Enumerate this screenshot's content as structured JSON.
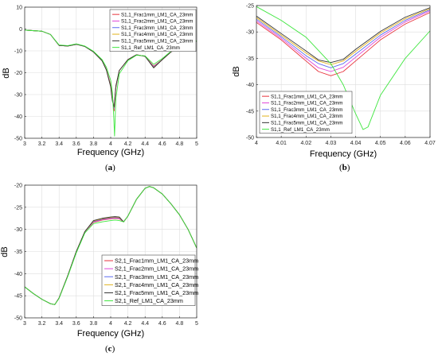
{
  "colors": {
    "frac1": "#e8323c",
    "frac2": "#e045d8",
    "frac3": "#5b6cf0",
    "frac4": "#e2b21b",
    "frac5": "#333333",
    "ref": "#3ee63e"
  },
  "chart_data": [
    {
      "type": "line",
      "panel_label": "a",
      "xlabel": "Frequency (GHz)",
      "ylabel": "dB",
      "xlim": [
        3,
        5
      ],
      "ylim": [
        -50,
        10
      ],
      "xticks": [
        "3",
        "3.2",
        "3.4",
        "3.6",
        "3.8",
        "4",
        "4.2",
        "4.4",
        "4.6",
        "4.8",
        "5"
      ],
      "yticks": [
        "10",
        "0",
        "-10",
        "-20",
        "-30",
        "-40",
        "-50"
      ],
      "grid": true,
      "legend": "top-right",
      "series": [
        {
          "name": "S1,1_Frac1mm_LM1_CA_23mm",
          "color_key": "frac1",
          "x": [
            3.0,
            3.2,
            3.3,
            3.4,
            3.5,
            3.6,
            3.7,
            3.8,
            3.9,
            3.95,
            4.0,
            4.02,
            4.04,
            4.06,
            4.1,
            4.2,
            4.3,
            4.4,
            4.5,
            4.6,
            4.7,
            4.8,
            4.9,
            5.0
          ],
          "y": [
            -0.5,
            -1.0,
            -2.5,
            -7.5,
            -7.8,
            -7.0,
            -8.0,
            -10.5,
            -14.5,
            -18.5,
            -25.5,
            -31.0,
            -37.5,
            -27.0,
            -19.0,
            -14.0,
            -11.8,
            -12.5,
            -17.0,
            -14.0,
            -10.5,
            -8.5,
            -7.0,
            -5.5
          ]
        },
        {
          "name": "S1,1_Frac2mm_LM1_CA_23mm",
          "color_key": "frac2",
          "x": [
            3.0,
            3.2,
            3.3,
            3.4,
            3.5,
            3.6,
            3.7,
            3.8,
            3.9,
            3.95,
            4.0,
            4.02,
            4.04,
            4.06,
            4.1,
            4.2,
            4.3,
            4.4,
            4.5,
            4.6,
            4.7,
            4.8,
            4.9,
            5.0
          ],
          "y": [
            -0.5,
            -1.0,
            -2.5,
            -7.5,
            -7.8,
            -7.0,
            -8.0,
            -10.5,
            -14.5,
            -18.5,
            -25.8,
            -31.5,
            -36.5,
            -26.8,
            -19.0,
            -14.0,
            -11.8,
            -12.5,
            -17.2,
            -14.0,
            -10.5,
            -8.5,
            -7.0,
            -5.5
          ]
        },
        {
          "name": "S1,1_Frac3mm_LM1_CA_23mm",
          "color_key": "frac3",
          "x": [
            3.0,
            3.2,
            3.3,
            3.4,
            3.5,
            3.6,
            3.7,
            3.8,
            3.9,
            3.95,
            4.0,
            4.02,
            4.04,
            4.06,
            4.1,
            4.2,
            4.3,
            4.4,
            4.5,
            4.6,
            4.7,
            4.8,
            4.9,
            5.0
          ],
          "y": [
            -0.5,
            -1.0,
            -2.5,
            -7.5,
            -7.8,
            -7.0,
            -8.0,
            -10.5,
            -14.5,
            -18.6,
            -26.0,
            -32.0,
            -36.0,
            -26.5,
            -19.0,
            -14.0,
            -11.8,
            -12.5,
            -17.4,
            -14.0,
            -10.5,
            -8.5,
            -7.0,
            -5.5
          ]
        },
        {
          "name": "S1,1_Frac4mm_LM1_CA_23mm",
          "color_key": "frac4",
          "x": [
            3.0,
            3.2,
            3.3,
            3.4,
            3.5,
            3.6,
            3.7,
            3.8,
            3.9,
            3.95,
            4.0,
            4.02,
            4.04,
            4.06,
            4.1,
            4.2,
            4.3,
            4.4,
            4.5,
            4.6,
            4.7,
            4.8,
            4.9,
            5.0
          ],
          "y": [
            -0.5,
            -1.0,
            -2.5,
            -7.5,
            -7.8,
            -7.0,
            -8.0,
            -10.5,
            -14.5,
            -18.7,
            -26.2,
            -32.5,
            -35.8,
            -26.2,
            -19.0,
            -14.0,
            -11.8,
            -12.5,
            -17.6,
            -14.0,
            -10.5,
            -8.5,
            -7.0,
            -5.5
          ]
        },
        {
          "name": "S1,1_Frac5mm_LM1_CA_23mm",
          "color_key": "frac5",
          "x": [
            3.0,
            3.2,
            3.3,
            3.4,
            3.5,
            3.6,
            3.7,
            3.8,
            3.9,
            3.95,
            4.0,
            4.02,
            4.04,
            4.06,
            4.1,
            4.2,
            4.3,
            4.4,
            4.5,
            4.6,
            4.7,
            4.8,
            4.9,
            5.0
          ],
          "y": [
            -0.5,
            -1.0,
            -2.5,
            -7.5,
            -7.8,
            -7.0,
            -8.0,
            -10.5,
            -14.5,
            -18.8,
            -26.5,
            -33.0,
            -35.7,
            -26.0,
            -19.0,
            -14.0,
            -11.8,
            -12.5,
            -17.8,
            -14.0,
            -10.5,
            -8.5,
            -7.0,
            -5.5
          ]
        },
        {
          "name": "S1,1_Ref_LM1_CA_23mm",
          "color_key": "ref",
          "x": [
            3.0,
            3.2,
            3.3,
            3.4,
            3.5,
            3.6,
            3.7,
            3.8,
            3.9,
            3.95,
            4.0,
            4.02,
            4.035,
            4.045,
            4.06,
            4.1,
            4.2,
            4.3,
            4.4,
            4.5,
            4.6,
            4.7,
            4.8,
            4.9,
            5.0
          ],
          "y": [
            -0.5,
            -1.0,
            -2.5,
            -7.3,
            -7.6,
            -6.8,
            -7.8,
            -10.2,
            -14.0,
            -17.5,
            -23.5,
            -29.0,
            -40.0,
            -49.0,
            -32.0,
            -20.5,
            -14.5,
            -12.0,
            -12.3,
            -16.2,
            -13.5,
            -10.2,
            -8.2,
            -6.8,
            -5.4
          ]
        }
      ]
    },
    {
      "type": "line",
      "panel_label": "b",
      "xlabel": "Frequency (GHz)",
      "ylabel": "dB",
      "xlim": [
        4,
        4.07
      ],
      "ylim": [
        -50,
        -25
      ],
      "xticks": [
        "4",
        "4.01",
        "4.02",
        "4.03",
        "4.04",
        "4.05",
        "4.06",
        "4.07"
      ],
      "yticks": [
        "-25",
        "-30",
        "-35",
        "-40",
        "-45",
        "-50"
      ],
      "grid": true,
      "legend": "bottom-left",
      "series": [
        {
          "name": "S1,1_Frac1mm_LM1_CA_23mm",
          "color_key": "frac1",
          "x": [
            4.0,
            4.01,
            4.02,
            4.025,
            4.03,
            4.035,
            4.04,
            4.05,
            4.06,
            4.07
          ],
          "y": [
            -28.2,
            -31.5,
            -35.5,
            -37.5,
            -38.3,
            -37.5,
            -35.5,
            -31.5,
            -28.5,
            -26.3
          ]
        },
        {
          "name": "S1,1_Frac2mm_LM1_CA_23mm",
          "color_key": "frac2",
          "x": [
            4.0,
            4.01,
            4.02,
            4.025,
            4.03,
            4.035,
            4.04,
            4.05,
            4.06,
            4.07
          ],
          "y": [
            -27.9,
            -31.2,
            -35.0,
            -36.8,
            -37.5,
            -36.7,
            -34.8,
            -31.0,
            -28.1,
            -26.0
          ]
        },
        {
          "name": "S1,1_Frac3mm_LM1_CA_23mm",
          "color_key": "frac3",
          "x": [
            4.0,
            4.01,
            4.02,
            4.025,
            4.03,
            4.035,
            4.04,
            4.05,
            4.06,
            4.07
          ],
          "y": [
            -27.6,
            -30.9,
            -34.5,
            -36.0,
            -36.8,
            -36.0,
            -34.2,
            -30.6,
            -27.8,
            -25.8
          ]
        },
        {
          "name": "S1,1_Frac4mm_LM1_CA_23mm",
          "color_key": "frac4",
          "x": [
            4.0,
            4.01,
            4.02,
            4.025,
            4.03,
            4.035,
            4.04,
            4.05,
            4.06,
            4.07
          ],
          "y": [
            -27.3,
            -30.6,
            -34.0,
            -35.5,
            -36.2,
            -35.5,
            -33.7,
            -30.2,
            -27.5,
            -25.6
          ]
        },
        {
          "name": "S1,1_Frac5mm_LM1_CA_23mm",
          "color_key": "frac5",
          "x": [
            4.0,
            4.01,
            4.02,
            4.025,
            4.03,
            4.035,
            4.04,
            4.05,
            4.06,
            4.07
          ],
          "y": [
            -27.0,
            -30.3,
            -33.6,
            -35.3,
            -35.8,
            -35.2,
            -33.3,
            -29.9,
            -27.2,
            -25.4
          ]
        },
        {
          "name": "S1,1_Ref_LM1_CA_23mm",
          "color_key": "ref",
          "x": [
            4.0,
            4.01,
            4.02,
            4.03,
            4.035,
            4.04,
            4.043,
            4.045,
            4.05,
            4.06,
            4.07
          ],
          "y": [
            -25.2,
            -27.8,
            -31.0,
            -36.0,
            -40.0,
            -45.5,
            -48.5,
            -48.0,
            -42.0,
            -35.0,
            -29.8
          ]
        }
      ]
    },
    {
      "type": "line",
      "panel_label": "c",
      "xlabel": "Frequency (GHz)",
      "ylabel": "dB",
      "xlim": [
        3,
        5
      ],
      "ylim": [
        -50,
        -20
      ],
      "xticks": [
        "3",
        "3.2",
        "3.4",
        "3.6",
        "3.8",
        "4",
        "4.2",
        "4.4",
        "4.6",
        "4.8",
        "5"
      ],
      "yticks": [
        "-20",
        "-25",
        "-30",
        "-35",
        "-40",
        "-45",
        "-50"
      ],
      "grid": true,
      "legend": "bottom-right",
      "series": [
        {
          "name": "S2,1_Frac1mm_LM1_CA_23mm",
          "color_key": "frac1",
          "x": [
            3.0,
            3.1,
            3.2,
            3.3,
            3.35,
            3.4,
            3.5,
            3.6,
            3.7,
            3.8,
            3.9,
            4.0,
            4.05,
            4.1,
            4.15,
            4.2,
            4.3,
            4.4,
            4.45,
            4.5,
            4.6,
            4.7,
            4.8,
            4.9,
            5.0
          ],
          "y": [
            -43.0,
            -44.5,
            -45.8,
            -46.8,
            -47.0,
            -45.5,
            -40.5,
            -35.0,
            -30.5,
            -28.4,
            -27.9,
            -27.6,
            -27.5,
            -27.6,
            -28.3,
            -27.0,
            -23.2,
            -20.7,
            -20.3,
            -20.6,
            -22.0,
            -24.2,
            -26.7,
            -30.0,
            -34.2
          ]
        },
        {
          "name": "S2,1_Frac2mm_LM1_CA_23mm",
          "color_key": "frac2",
          "x": [
            3.0,
            3.1,
            3.2,
            3.3,
            3.35,
            3.4,
            3.5,
            3.6,
            3.7,
            3.8,
            3.9,
            4.0,
            4.05,
            4.1,
            4.15,
            4.2,
            4.3,
            4.4,
            4.45,
            4.5,
            4.6,
            4.7,
            4.8,
            4.9,
            5.0
          ],
          "y": [
            -43.0,
            -44.5,
            -45.8,
            -46.8,
            -47.0,
            -45.5,
            -40.5,
            -35.0,
            -30.5,
            -28.3,
            -27.8,
            -27.5,
            -27.4,
            -27.5,
            -28.3,
            -27.0,
            -23.2,
            -20.7,
            -20.3,
            -20.6,
            -22.0,
            -24.2,
            -26.7,
            -30.0,
            -34.2
          ]
        },
        {
          "name": "S2,1_Frac3mm_LM1_CA_23mm",
          "color_key": "frac3",
          "x": [
            3.0,
            3.1,
            3.2,
            3.3,
            3.35,
            3.4,
            3.5,
            3.6,
            3.7,
            3.8,
            3.9,
            4.0,
            4.05,
            4.1,
            4.15,
            4.2,
            4.3,
            4.4,
            4.45,
            4.5,
            4.6,
            4.7,
            4.8,
            4.9,
            5.0
          ],
          "y": [
            -43.0,
            -44.5,
            -45.8,
            -46.8,
            -47.0,
            -45.5,
            -40.5,
            -35.0,
            -30.5,
            -28.2,
            -27.7,
            -27.4,
            -27.3,
            -27.4,
            -28.3,
            -27.0,
            -23.2,
            -20.7,
            -20.3,
            -20.6,
            -22.0,
            -24.2,
            -26.7,
            -30.0,
            -34.2
          ]
        },
        {
          "name": "S2,1_Frac4mm_LM1_CA_23mm",
          "color_key": "frac4",
          "x": [
            3.0,
            3.1,
            3.2,
            3.3,
            3.35,
            3.4,
            3.5,
            3.6,
            3.7,
            3.8,
            3.9,
            4.0,
            4.05,
            4.1,
            4.15,
            4.2,
            4.3,
            4.4,
            4.45,
            4.5,
            4.6,
            4.7,
            4.8,
            4.9,
            5.0
          ],
          "y": [
            -43.0,
            -44.5,
            -45.8,
            -46.8,
            -47.0,
            -45.5,
            -40.5,
            -35.0,
            -30.5,
            -28.1,
            -27.6,
            -27.3,
            -27.2,
            -27.3,
            -28.3,
            -27.0,
            -23.2,
            -20.7,
            -20.3,
            -20.6,
            -22.0,
            -24.2,
            -26.7,
            -30.0,
            -34.2
          ]
        },
        {
          "name": "S2,1_Frac5mm_LM1_CA_23mm",
          "color_key": "frac5",
          "x": [
            3.0,
            3.1,
            3.2,
            3.3,
            3.35,
            3.4,
            3.5,
            3.6,
            3.7,
            3.8,
            3.9,
            4.0,
            4.05,
            4.1,
            4.15,
            4.2,
            4.3,
            4.4,
            4.45,
            4.5,
            4.6,
            4.7,
            4.8,
            4.9,
            5.0
          ],
          "y": [
            -43.0,
            -44.5,
            -45.8,
            -46.8,
            -47.0,
            -45.5,
            -40.5,
            -35.0,
            -30.5,
            -28.0,
            -27.5,
            -27.2,
            -27.1,
            -27.2,
            -28.3,
            -27.0,
            -23.2,
            -20.7,
            -20.3,
            -20.6,
            -22.0,
            -24.2,
            -26.7,
            -30.0,
            -34.2
          ]
        },
        {
          "name": "S2,1_Ref_LM1_CA_23mm",
          "color_key": "ref",
          "x": [
            3.0,
            3.1,
            3.2,
            3.3,
            3.35,
            3.4,
            3.5,
            3.6,
            3.7,
            3.8,
            3.9,
            4.0,
            4.05,
            4.1,
            4.15,
            4.2,
            4.3,
            4.4,
            4.45,
            4.5,
            4.6,
            4.7,
            4.8,
            4.9,
            5.0
          ],
          "y": [
            -43.0,
            -44.5,
            -45.8,
            -46.8,
            -47.0,
            -45.6,
            -40.7,
            -35.3,
            -30.8,
            -28.7,
            -28.3,
            -28.0,
            -27.9,
            -28.0,
            -28.3,
            -27.0,
            -23.2,
            -20.7,
            -20.3,
            -20.6,
            -22.0,
            -24.2,
            -26.7,
            -30.0,
            -34.2
          ]
        }
      ]
    }
  ]
}
